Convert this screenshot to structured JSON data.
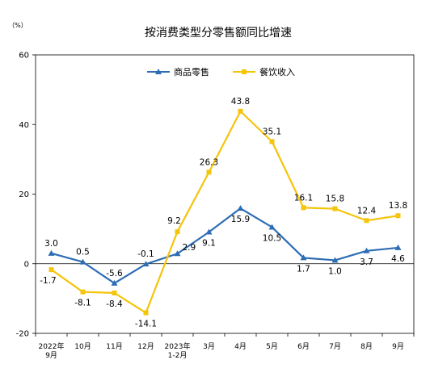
{
  "chart_data": {
    "type": "line",
    "title": "按消费类型分零售额同比增速",
    "ylabel": "（%）",
    "xlabel": "",
    "ylim": [
      -20,
      60
    ],
    "yticks": [
      -20,
      0,
      20,
      40,
      60
    ],
    "grid": false,
    "legend": "top-center",
    "categories": [
      [
        "2022年",
        "9月"
      ],
      [
        "10月"
      ],
      [
        "11月"
      ],
      [
        "12月"
      ],
      [
        "2023年",
        "1-2月"
      ],
      [
        "3月"
      ],
      [
        "4月"
      ],
      [
        "5月"
      ],
      [
        "6月"
      ],
      [
        "7月"
      ],
      [
        "8月"
      ],
      [
        "9月"
      ]
    ],
    "series": [
      {
        "name": "商品零售",
        "color": "#2E6DB4",
        "marker": "triangle",
        "values": [
          3.0,
          0.5,
          -5.6,
          -0.1,
          2.9,
          9.1,
          15.9,
          10.5,
          1.7,
          1.0,
          3.7,
          4.6
        ],
        "labels": [
          "3.0",
          "0.5",
          "-5.6",
          "-0.1",
          "2.9",
          "9.1",
          "15.9",
          "10.5",
          "1.7",
          "1.0",
          "3.7",
          "4.6"
        ]
      },
      {
        "name": "餐饮收入",
        "color": "#F5C40C",
        "marker": "square",
        "values": [
          -1.7,
          -8.1,
          -8.4,
          -14.1,
          9.2,
          26.3,
          43.8,
          35.1,
          16.1,
          15.8,
          12.4,
          13.8
        ],
        "labels": [
          "-1.7",
          "-8.1",
          "-8.4",
          "-14.1",
          "9.2",
          "26.3",
          "43.8",
          "35.1",
          "16.1",
          "15.8",
          "12.4",
          "13.8"
        ]
      }
    ]
  }
}
